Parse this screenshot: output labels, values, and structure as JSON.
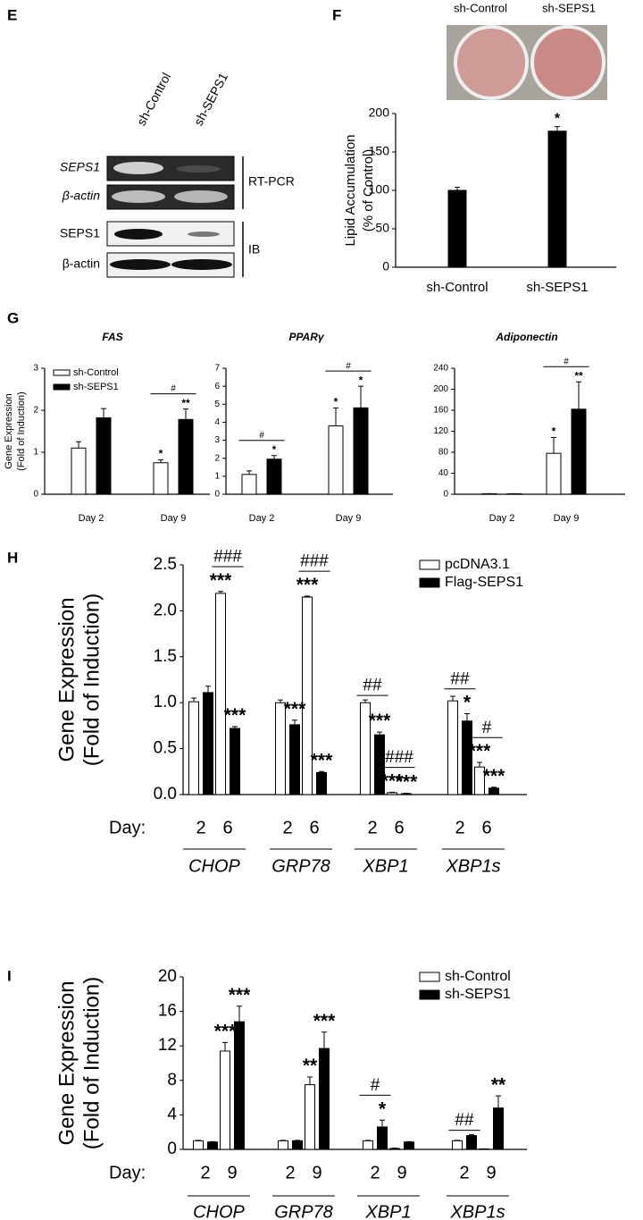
{
  "panels": {
    "e": "E",
    "f": "F",
    "g": "G",
    "h": "H",
    "i": "I"
  },
  "blot": {
    "lanes": [
      "sh-Control",
      "sh-SEPS1"
    ],
    "rows": [
      "SEPS1",
      "β-actin",
      "SEPS1",
      "β-actin"
    ],
    "groups": [
      "RT-PCR",
      "IB"
    ]
  },
  "photo": {
    "labels": [
      "sh-Control",
      "sh-SEPS1"
    ]
  },
  "chart_data": [
    {
      "type": "bar",
      "ylabel": [
        "Lipid Accumulation",
        "(% of Control)"
      ],
      "categories": [
        "sh-Control",
        "sh-SEPS1"
      ],
      "values": [
        100,
        177
      ],
      "error": [
        4,
        6
      ],
      "significance": [
        null,
        "*"
      ],
      "color": "#000000",
      "ylim": [
        0,
        200
      ],
      "yticks": [
        0,
        50,
        100,
        150,
        200
      ]
    },
    {
      "type": "bar",
      "title": "FAS",
      "ylabel": [
        "Gene Expression",
        "(Fold of Induction)"
      ],
      "categories": [
        "Day 2",
        "Day 9"
      ],
      "series": [
        {
          "name": "sh-Control",
          "color": "#ffffff",
          "values": [
            1.1,
            0.75
          ],
          "error": [
            0.15,
            0.07
          ],
          "significance": [
            null,
            "*"
          ]
        },
        {
          "name": "sh-SEPS1",
          "color": "#000000",
          "values": [
            1.82,
            1.78
          ],
          "error": [
            0.22,
            0.25
          ],
          "significance": [
            null,
            "**"
          ]
        }
      ],
      "pair_significance": [
        null,
        "#"
      ],
      "legend": "upper left",
      "ylim": [
        0,
        3
      ],
      "yticks": [
        0,
        1,
        2,
        3
      ]
    },
    {
      "type": "bar",
      "title": "PPARγ",
      "categories": [
        "Day 2",
        "Day 9"
      ],
      "series": [
        {
          "color": "#ffffff",
          "values": [
            1.1,
            3.8
          ],
          "error": [
            0.2,
            1.0
          ],
          "significance": [
            null,
            "*"
          ]
        },
        {
          "color": "#000000",
          "values": [
            1.95,
            4.8
          ],
          "error": [
            0.2,
            1.2
          ],
          "significance": [
            "*",
            "*"
          ]
        }
      ],
      "pair_significance": [
        "#",
        "#"
      ],
      "ylim": [
        0,
        7
      ],
      "yticks": [
        0,
        1,
        2,
        3,
        4,
        5,
        6,
        7
      ]
    },
    {
      "type": "bar",
      "title": "Adiponectin",
      "categories": [
        "Day 2",
        "Day 9"
      ],
      "series": [
        {
          "color": "#ffffff",
          "values": [
            1,
            78
          ],
          "error": [
            0,
            30
          ],
          "significance": [
            null,
            "*"
          ]
        },
        {
          "color": "#000000",
          "values": [
            1,
            162
          ],
          "error": [
            0,
            52
          ],
          "significance": [
            null,
            "**"
          ]
        }
      ],
      "pair_significance": [
        null,
        "#"
      ],
      "ylim": [
        0,
        240
      ],
      "yticks": [
        0,
        40,
        80,
        120,
        160,
        200,
        240
      ]
    },
    {
      "type": "bar",
      "ylabel": [
        "Gene Expression",
        "(Fold of Induction)"
      ],
      "x_prefix": "Day:",
      "categories": [
        "2",
        "6",
        "2",
        "6",
        "2",
        "6",
        "2",
        "6"
      ],
      "groups": [
        "CHOP",
        "GRP78",
        "XBP1",
        "XBP1s"
      ],
      "series": [
        {
          "name": "pcDNA3.1",
          "color": "#ffffff",
          "values": [
            1.01,
            2.19,
            1.0,
            2.15,
            1.0,
            0.02,
            1.02,
            0.3
          ],
          "error": [
            0.04,
            0.02,
            0.03,
            0.01,
            0.03,
            0.005,
            0.05,
            0.05
          ],
          "significance": [
            null,
            "***",
            null,
            "***",
            null,
            "***",
            null,
            "***"
          ]
        },
        {
          "name": "Flag-SEPS1",
          "color": "#000000",
          "values": [
            1.11,
            0.72,
            0.76,
            0.24,
            0.65,
            0.01,
            0.8,
            0.07
          ],
          "error": [
            0.07,
            0.02,
            0.05,
            0.01,
            0.03,
            0.005,
            0.08,
            0.01
          ],
          "significance": [
            null,
            "***",
            "***",
            "***",
            "***",
            "***",
            "*",
            "***"
          ]
        }
      ],
      "pair_significance": [
        null,
        "###",
        null,
        "###",
        "##",
        "###",
        "##",
        "#"
      ],
      "legend": "upper right",
      "ylim": [
        0,
        2.5
      ],
      "yticks": [
        {
          "value": 0,
          "label": "0.0"
        },
        {
          "value": 0.5,
          "label": "0.5"
        },
        {
          "value": 1,
          "label": "1.0"
        },
        {
          "value": 1.5,
          "label": "1.5"
        },
        {
          "value": 2,
          "label": "2.0"
        },
        {
          "value": 2.5,
          "label": "2.5"
        }
      ]
    },
    {
      "type": "bar",
      "ylabel": [
        "Gene Expression",
        "(Fold of Induction)"
      ],
      "x_prefix": "Day:",
      "categories": [
        "2",
        "9",
        "2",
        "9",
        "2",
        "9",
        "2",
        "9"
      ],
      "groups": [
        "CHOP",
        "GRP78",
        "XBP1",
        "XBP1s"
      ],
      "series": [
        {
          "name": "sh-Control",
          "color": "#ffffff",
          "values": [
            1.0,
            11.4,
            1.0,
            7.5,
            1.0,
            0.1,
            1.0,
            0.05
          ],
          "error": [
            0.05,
            1.0,
            0.05,
            0.9,
            0.05,
            0.05,
            0.05,
            0.02
          ],
          "significance": [
            null,
            "***",
            null,
            "**",
            null,
            null,
            null,
            null
          ]
        },
        {
          "name": "sh-SEPS1",
          "color": "#000000",
          "values": [
            0.85,
            14.8,
            1.0,
            11.7,
            2.6,
            0.85,
            1.6,
            4.8
          ],
          "error": [
            0.05,
            1.8,
            0.05,
            1.9,
            0.8,
            0.05,
            0.1,
            1.4
          ],
          "significance": [
            null,
            "***",
            null,
            "***",
            "*",
            null,
            null,
            "**"
          ]
        }
      ],
      "pair_significance": [
        null,
        null,
        null,
        null,
        "#",
        null,
        "##",
        null
      ],
      "legend": "upper right",
      "ylim": [
        0,
        20
      ],
      "yticks": [
        0,
        4,
        8,
        12,
        16,
        20
      ]
    }
  ]
}
